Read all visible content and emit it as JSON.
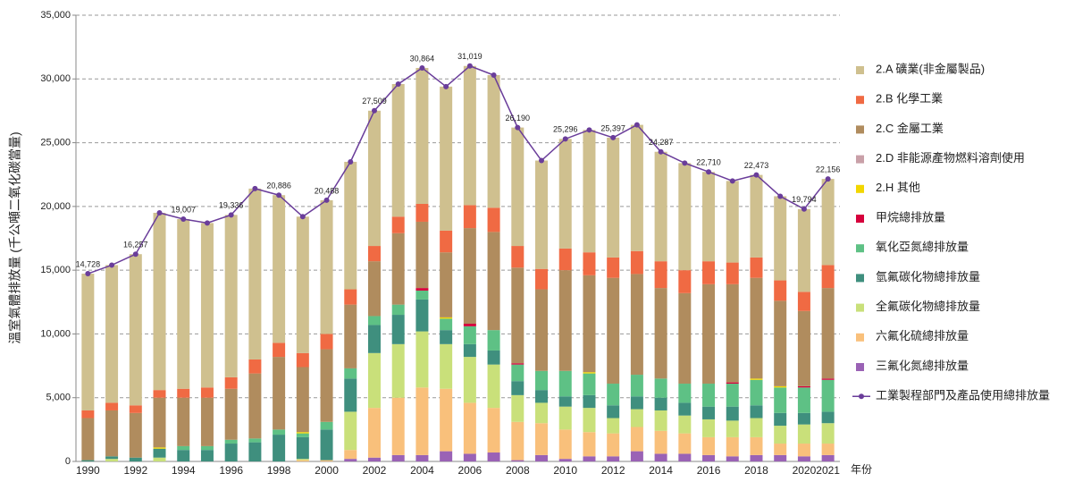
{
  "chart_data": {
    "type": "bar",
    "stacked": true,
    "y_label": "溫室氣體排放量 (千公噸二氧化碳當量)",
    "x_label": "年份",
    "categories": [
      "1990",
      null,
      "1992",
      null,
      "1994",
      null,
      "1996",
      null,
      "1998",
      null,
      "2000",
      null,
      "2002",
      null,
      "2004",
      null,
      "2006",
      null,
      "2008",
      null,
      "2010",
      null,
      "2012",
      null,
      "2014",
      null,
      "2016",
      null,
      "2018",
      null,
      "2020",
      "2021"
    ],
    "ylim": [
      0,
      35000
    ],
    "yticks": [
      0,
      {
        "value": 5000,
        "label": "5,000"
      },
      {
        "value": 10000,
        "label": "10,000"
      },
      {
        "value": 15000,
        "label": "15,000"
      },
      {
        "value": 20000,
        "label": "20,000"
      },
      {
        "value": 25000,
        "label": "25,000"
      },
      {
        "value": 30000,
        "label": "30,000"
      },
      {
        "value": 35000,
        "label": "35,000"
      }
    ],
    "grid": true,
    "legend": "right",
    "series": [
      {
        "name": "2.A 礦業(非金屬製品)",
        "color": "#cfc08f",
        "values": [
          10728,
          10800,
          11857,
          13900,
          13307,
          12900,
          12736,
          13400,
          11586,
          10700,
          10488,
          10000,
          10609,
          10400,
          10664,
          11300,
          10919,
          10400,
          9290,
          8500,
          8596,
          9600,
          9397,
          9900,
          8587,
          8400,
          7010,
          6400,
          6473,
          6600,
          6494,
          6756
        ]
      },
      {
        "name": "2.B 化學工業",
        "color": "#f06a43",
        "values": [
          600,
          600,
          600,
          600,
          700,
          800,
          900,
          1100,
          1100,
          1100,
          1200,
          1200,
          1200,
          1300,
          1400,
          1700,
          1800,
          1900,
          1700,
          1600,
          1700,
          1800,
          1600,
          1800,
          2100,
          1800,
          1800,
          1700,
          1600,
          1600,
          1500,
          1800
        ]
      },
      {
        "name": "2.C 金屬工業",
        "color": "#b08c5e",
        "values": [
          3300,
          3600,
          3500,
          3900,
          3800,
          3800,
          4000,
          5100,
          5700,
          5100,
          5700,
          5000,
          4300,
          5600,
          5200,
          5100,
          7500,
          7700,
          7500,
          6400,
          7900,
          7600,
          8300,
          7900,
          7100,
          7100,
          7800,
          7700,
          7900,
          6700,
          5900,
          7100
        ]
      },
      {
        "name": "2.D 非能源產物燃料溶劑使用",
        "color": "#c9a0a8",
        "values": [
          0,
          0,
          0,
          0,
          0,
          0,
          0,
          0,
          0,
          0,
          0,
          0,
          0,
          0,
          0,
          0,
          0,
          0,
          0,
          0,
          0,
          0,
          0,
          0,
          0,
          0,
          0,
          0,
          0,
          0,
          0,
          0
        ]
      },
      {
        "name": "2.H 其他",
        "color": "#f2d600",
        "values": [
          0,
          0,
          0,
          100,
          0,
          0,
          0,
          0,
          0,
          100,
          0,
          0,
          0,
          0,
          0,
          100,
          0,
          0,
          0,
          0,
          0,
          100,
          0,
          0,
          0,
          0,
          0,
          0,
          100,
          100,
          0,
          0
        ]
      },
      {
        "name": "甲烷總排放量",
        "color": "#d6003c",
        "values": [
          0,
          0,
          0,
          0,
          0,
          0,
          0,
          0,
          0,
          0,
          0,
          0,
          0,
          0,
          200,
          0,
          200,
          0,
          100,
          0,
          0,
          0,
          0,
          0,
          0,
          0,
          0,
          100,
          0,
          0,
          100,
          100
        ]
      },
      {
        "name": "氧化亞氮總排放量",
        "color": "#5ec185",
        "values": [
          0,
          0,
          0,
          0,
          300,
          300,
          300,
          300,
          400,
          300,
          600,
          800,
          700,
          800,
          700,
          900,
          1400,
          1600,
          1300,
          1500,
          2000,
          1700,
          1700,
          1700,
          1500,
          1500,
          1800,
          1800,
          2000,
          2000,
          2000,
          2500
        ]
      },
      {
        "name": "氫氟碳化物總排放量",
        "color": "#3f8f7e",
        "values": [
          100,
          200,
          300,
          700,
          900,
          900,
          1400,
          1500,
          2100,
          1700,
          2400,
          2600,
          2200,
          2300,
          2500,
          1100,
          1000,
          1100,
          1100,
          1000,
          800,
          1000,
          1000,
          1000,
          1000,
          1000,
          1000,
          1100,
          1000,
          1000,
          900,
          900
        ]
      },
      {
        "name": "全氟碳化物總排放量",
        "color": "#c9e07a",
        "values": [
          0,
          200,
          0,
          300,
          0,
          0,
          0,
          0,
          0,
          100,
          0,
          3000,
          4300,
          4200,
          4400,
          3500,
          3600,
          3400,
          2100,
          1600,
          1800,
          1900,
          1200,
          1400,
          1600,
          1400,
          1400,
          1300,
          1500,
          1400,
          1500,
          1600
        ]
      },
      {
        "name": "六氟化硫總排放量",
        "color": "#f9c07b",
        "values": [
          0,
          0,
          0,
          0,
          0,
          0,
          0,
          0,
          0,
          100,
          100,
          700,
          3900,
          4500,
          5300,
          4900,
          4000,
          3500,
          3000,
          2500,
          2300,
          1900,
          1800,
          1900,
          1800,
          1600,
          1400,
          1500,
          1400,
          900,
          1000,
          900
        ]
      },
      {
        "name": "三氟化氮總排放量",
        "color": "#9a62b5",
        "values": [
          0,
          0,
          0,
          0,
          0,
          0,
          0,
          0,
          0,
          0,
          0,
          200,
          300,
          500,
          500,
          800,
          600,
          700,
          100,
          500,
          200,
          400,
          400,
          800,
          600,
          600,
          500,
          400,
          500,
          500,
          400,
          500
        ]
      },
      {
        "name": "工業製程部門及產品使用總排放量",
        "color": "#6a3d9a",
        "type": "line",
        "values": [
          14728,
          15400,
          16257,
          19500,
          19007,
          18700,
          19336,
          21400,
          20886,
          19200,
          20488,
          23500,
          27509,
          29600,
          30864,
          29400,
          31019,
          30300,
          26190,
          23600,
          25296,
          26000,
          25397,
          26400,
          24287,
          23400,
          22710,
          22000,
          22473,
          20800,
          19794,
          22156
        ],
        "value_labels": [
          "14,728",
          null,
          "16,257",
          null,
          "19,007",
          null,
          "19,336",
          null,
          "20,886",
          null,
          "20,488",
          null,
          "27,509",
          null,
          "30,864",
          null,
          "31,019",
          null,
          "26,190",
          null,
          "25,296",
          null,
          "25,397",
          null,
          "24,287",
          null,
          "22,710",
          null,
          "22,473",
          null,
          "19,794",
          "22,156"
        ]
      }
    ]
  }
}
